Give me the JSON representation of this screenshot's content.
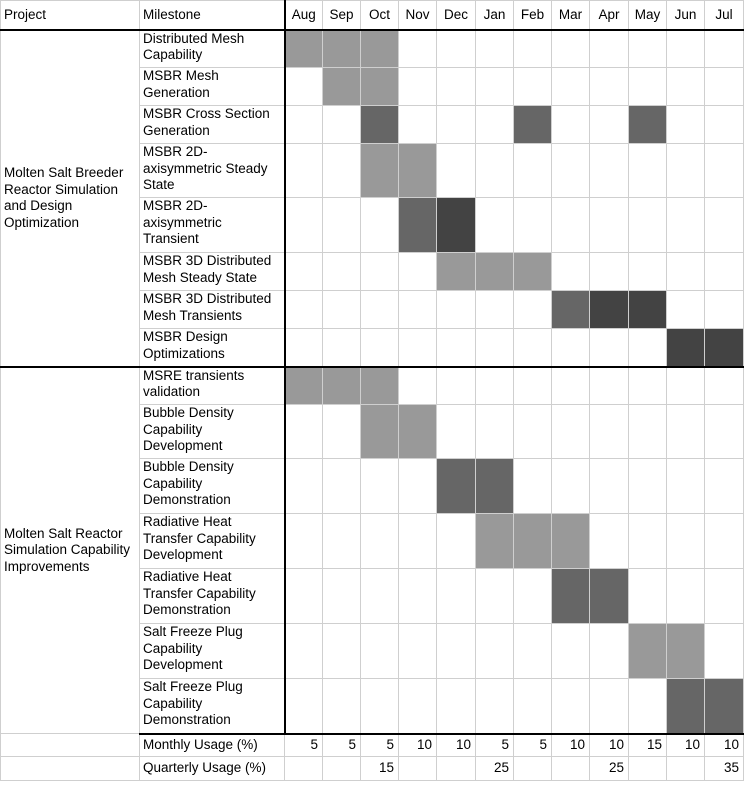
{
  "header": {
    "project": "Project",
    "milestone": "Milestone",
    "months": [
      "Aug",
      "Sep",
      "Oct",
      "Nov",
      "Dec",
      "Jan",
      "Feb",
      "Mar",
      "Apr",
      "May",
      "Jun",
      "Jul"
    ]
  },
  "colors": {
    "light": "#999999",
    "medium": "#666666",
    "dark": "#434343",
    "gridline": "#cfcfcf",
    "border": "#000000"
  },
  "projects": [
    {
      "name": "Molten Salt Breeder Reactor Simulation and Design Optimization",
      "milestones": [
        {
          "name": "Distributed Mesh Capability",
          "shading": [
            1,
            1,
            1,
            0,
            0,
            0,
            0,
            0,
            0,
            0,
            0,
            0
          ]
        },
        {
          "name": "MSBR Mesh Generation",
          "shading": [
            0,
            1,
            1,
            0,
            0,
            0,
            0,
            0,
            0,
            0,
            0,
            0
          ]
        },
        {
          "name": "MSBR Cross Section Generation",
          "shading": [
            0,
            0,
            2,
            0,
            0,
            0,
            2,
            0,
            0,
            2,
            0,
            0
          ]
        },
        {
          "name": "MSBR 2D-axisymmetric Steady State",
          "shading": [
            0,
            0,
            1,
            1,
            0,
            0,
            0,
            0,
            0,
            0,
            0,
            0
          ]
        },
        {
          "name": "MSBR 2D-axisymmetric Transient",
          "shading": [
            0,
            0,
            0,
            2,
            3,
            0,
            0,
            0,
            0,
            0,
            0,
            0
          ]
        },
        {
          "name": "MSBR 3D Distributed Mesh Steady State",
          "shading": [
            0,
            0,
            0,
            0,
            1,
            1,
            1,
            0,
            0,
            0,
            0,
            0
          ]
        },
        {
          "name": "MSBR 3D Distributed Mesh Transients",
          "shading": [
            0,
            0,
            0,
            0,
            0,
            0,
            0,
            2,
            3,
            3,
            0,
            0
          ]
        },
        {
          "name": "MSBR Design Optimizations",
          "shading": [
            0,
            0,
            0,
            0,
            0,
            0,
            0,
            0,
            0,
            0,
            3,
            3
          ]
        }
      ]
    },
    {
      "name": "Molten Salt Reactor Simulation Capability Improvements",
      "milestones": [
        {
          "name": "MSRE transients validation",
          "shading": [
            1,
            1,
            1,
            0,
            0,
            0,
            0,
            0,
            0,
            0,
            0,
            0
          ]
        },
        {
          "name": "Bubble Density Capability Development",
          "shading": [
            0,
            0,
            1,
            1,
            0,
            0,
            0,
            0,
            0,
            0,
            0,
            0
          ]
        },
        {
          "name": "Bubble Density Capability Demonstration",
          "shading": [
            0,
            0,
            0,
            0,
            2,
            2,
            0,
            0,
            0,
            0,
            0,
            0
          ]
        },
        {
          "name": "Radiative Heat Transfer Capability Development",
          "shading": [
            0,
            0,
            0,
            0,
            0,
            1,
            1,
            1,
            0,
            0,
            0,
            0
          ]
        },
        {
          "name": "Radiative Heat Transfer Capability Demonstration",
          "shading": [
            0,
            0,
            0,
            0,
            0,
            0,
            0,
            2,
            2,
            0,
            0,
            0
          ]
        },
        {
          "name": "Salt Freeze Plug Capability Development",
          "shading": [
            0,
            0,
            0,
            0,
            0,
            0,
            0,
            0,
            0,
            1,
            1,
            0
          ]
        },
        {
          "name": "Salt Freeze Plug Capability Demonstration",
          "shading": [
            0,
            0,
            0,
            0,
            0,
            0,
            0,
            0,
            0,
            0,
            2,
            2
          ]
        }
      ]
    }
  ],
  "usage": {
    "monthly_label": "Monthly Usage (%)",
    "monthly": [
      "5",
      "5",
      "5",
      "10",
      "10",
      "5",
      "5",
      "10",
      "10",
      "15",
      "10",
      "10"
    ],
    "quarterly_label": "Quarterly Usage (%)",
    "quarterly": [
      "15",
      "25",
      "25",
      "35"
    ]
  }
}
